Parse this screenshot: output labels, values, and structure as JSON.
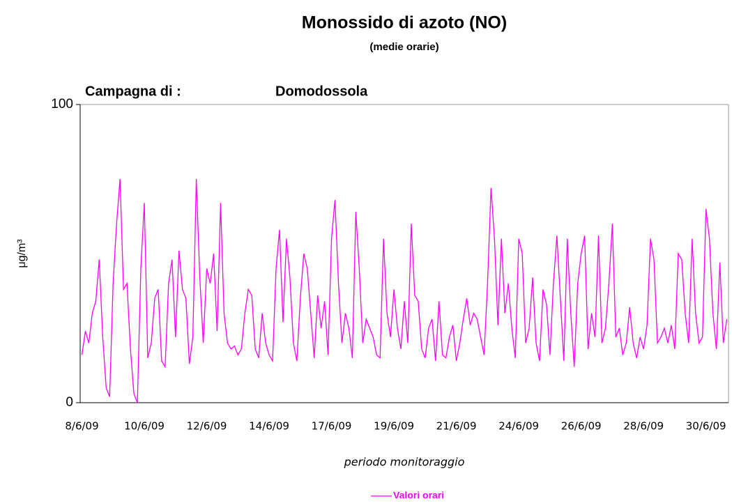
{
  "chart_data": {
    "type": "line",
    "title": "Monossido di azoto (NO)",
    "subtitle": "(medie orarie)",
    "annotations": [
      "Campagna di :",
      "Domodossola"
    ],
    "x_label": "periodo monitoraggio",
    "y_label": "μg/m³",
    "ylim": [
      0,
      100
    ],
    "yticks": [
      0,
      100
    ],
    "legend": "bottom",
    "categories": [
      "8/6/09",
      null,
      null,
      null,
      null,
      null,
      null,
      null,
      null,
      null,
      null,
      null,
      null,
      null,
      null,
      null,
      null,
      null,
      "10/6/09",
      null,
      null,
      null,
      null,
      null,
      null,
      null,
      null,
      null,
      null,
      null,
      null,
      null,
      null,
      null,
      null,
      null,
      "12/6/09",
      null,
      null,
      null,
      null,
      null,
      null,
      null,
      null,
      null,
      null,
      null,
      null,
      null,
      null,
      null,
      null,
      null,
      "14/6/09",
      null,
      null,
      null,
      null,
      null,
      null,
      null,
      null,
      null,
      null,
      null,
      null,
      null,
      null,
      null,
      null,
      null,
      "17/6/09",
      null,
      null,
      null,
      null,
      null,
      null,
      null,
      null,
      null,
      null,
      null,
      null,
      null,
      null,
      null,
      null,
      null,
      "19/6/09",
      null,
      null,
      null,
      null,
      null,
      null,
      null,
      null,
      null,
      null,
      null,
      null,
      null,
      null,
      null,
      null,
      null,
      "21/6/09",
      null,
      null,
      null,
      null,
      null,
      null,
      null,
      null,
      null,
      null,
      null,
      null,
      null,
      null,
      null,
      null,
      null,
      "24/6/09",
      null,
      null,
      null,
      null,
      null,
      null,
      null,
      null,
      null,
      null,
      null,
      null,
      null,
      null,
      null,
      null,
      null,
      "26/6/09",
      null,
      null,
      null,
      null,
      null,
      null,
      null,
      null,
      null,
      null,
      null,
      null,
      null,
      null,
      null,
      null,
      null,
      "28/6/09",
      null,
      null,
      null,
      null,
      null,
      null,
      null,
      null,
      null,
      null,
      null,
      null,
      null,
      null,
      null,
      null,
      null,
      "30/6/09",
      null,
      null,
      null,
      null,
      null,
      null
    ],
    "series": [
      {
        "name": "Valori orari",
        "color": "#ff00ff",
        "values": [
          16,
          24,
          20,
          30,
          34,
          48,
          22,
          5,
          2,
          40,
          60,
          75,
          38,
          40,
          18,
          3,
          0,
          45,
          67,
          15,
          20,
          35,
          38,
          14,
          12,
          40,
          48,
          22,
          51,
          38,
          35,
          13,
          22,
          75,
          42,
          20,
          45,
          40,
          50,
          24,
          67,
          30,
          20,
          18,
          19,
          16,
          18,
          30,
          38,
          36,
          18,
          15,
          30,
          20,
          16,
          14,
          45,
          58,
          27,
          55,
          42,
          20,
          14,
          35,
          50,
          45,
          30,
          15,
          36,
          25,
          34,
          16,
          55,
          68,
          40,
          20,
          30,
          25,
          15,
          64,
          45,
          20,
          28,
          25,
          22,
          16,
          15,
          55,
          30,
          22,
          38,
          25,
          18,
          34,
          20,
          60,
          36,
          34,
          18,
          15,
          25,
          28,
          14,
          34,
          16,
          15,
          22,
          26,
          14,
          20,
          28,
          35,
          26,
          30,
          28,
          22,
          16,
          40,
          72,
          55,
          26,
          55,
          30,
          40,
          25,
          15,
          55,
          50,
          20,
          25,
          42,
          20,
          14,
          38,
          33,
          16,
          40,
          56,
          35,
          14,
          55,
          30,
          12,
          40,
          50,
          56,
          18,
          30,
          22,
          56,
          20,
          25,
          40,
          60,
          22,
          25,
          16,
          20,
          32,
          20,
          15,
          22,
          18,
          26,
          55,
          48,
          20,
          22,
          25,
          20,
          26,
          18,
          50,
          48,
          30,
          20,
          55,
          30,
          20,
          22,
          65,
          55,
          30,
          18,
          47,
          20,
          28
        ]
      }
    ]
  }
}
